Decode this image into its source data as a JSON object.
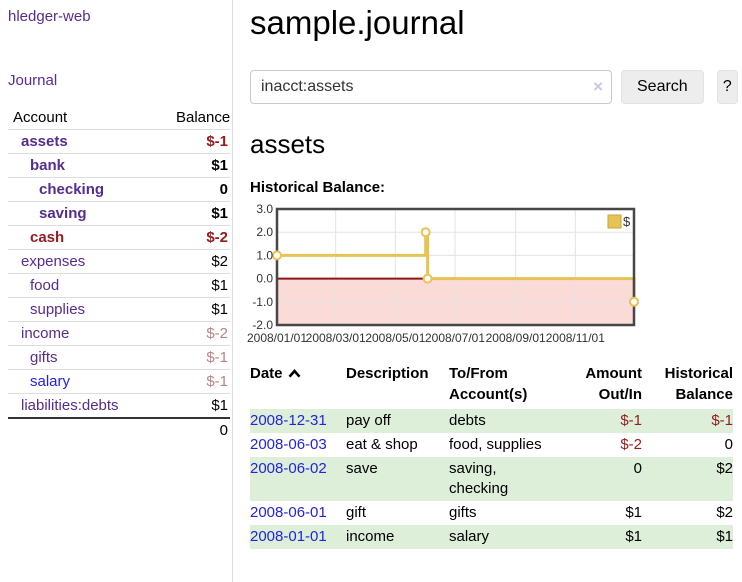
{
  "app": {
    "title": "hledger-web",
    "nav_journal": "Journal"
  },
  "sidebar_accounts": {
    "headers": {
      "account": "Account",
      "balance": "Balance"
    },
    "rows": [
      {
        "name": "assets",
        "balance": "$-1",
        "depth": 1,
        "bold": true,
        "balance_style": "neg-strong",
        "name_style": "purple"
      },
      {
        "name": "bank",
        "balance": "$1",
        "depth": 2,
        "bold": true,
        "balance_style": "",
        "name_style": "purple"
      },
      {
        "name": "checking",
        "balance": "0",
        "depth": 3,
        "bold": true,
        "balance_style": "",
        "name_style": "purple"
      },
      {
        "name": "saving",
        "balance": "$1",
        "depth": 3,
        "bold": true,
        "balance_style": "",
        "name_style": "purple"
      },
      {
        "name": "cash",
        "balance": "$-2",
        "depth": 2,
        "bold": true,
        "balance_style": "neg-strong",
        "name_style": "maroon"
      },
      {
        "name": "expenses",
        "balance": "$2",
        "depth": 1,
        "bold": false,
        "balance_style": "",
        "name_style": "purple"
      },
      {
        "name": "food",
        "balance": "$1",
        "depth": 2,
        "bold": false,
        "balance_style": "",
        "name_style": "purple"
      },
      {
        "name": "supplies",
        "balance": "$1",
        "depth": 2,
        "bold": false,
        "balance_style": "",
        "name_style": "purple"
      },
      {
        "name": "income",
        "balance": "$-2",
        "depth": 1,
        "bold": false,
        "balance_style": "neg-soft",
        "name_style": "purple"
      },
      {
        "name": "gifts",
        "balance": "$-1",
        "depth": 2,
        "bold": false,
        "balance_style": "neg-soft",
        "name_style": "purple"
      },
      {
        "name": "salary",
        "balance": "$-1",
        "depth": 2,
        "bold": false,
        "balance_style": "neg-soft",
        "name_style": "blue"
      },
      {
        "name": "liabilities:debts",
        "balance": "$1",
        "depth": 1,
        "bold": false,
        "balance_style": "",
        "name_style": "purple"
      }
    ],
    "total": "0"
  },
  "page": {
    "title": "sample.journal",
    "account_heading": "assets",
    "chart_label": "Historical Balance:"
  },
  "search": {
    "value": "inacct:assets",
    "clear_icon": "×",
    "search_button": "Search",
    "help_button": "?"
  },
  "chart_data": {
    "type": "line",
    "step": true,
    "title": "Historical Balance",
    "xlim_days": [
      0,
      365
    ],
    "ylim": [
      -2,
      3
    ],
    "grid": true,
    "y_ticks": [
      {
        "label": "3.0",
        "value": 3
      },
      {
        "label": "2.0",
        "value": 2
      },
      {
        "label": "1.0",
        "value": 1
      },
      {
        "label": "0.0",
        "value": 0
      },
      {
        "label": "-1.0",
        "value": -1
      },
      {
        "label": "-2.0",
        "value": -2
      }
    ],
    "x_ticks": [
      {
        "label": "2008/01/01",
        "day": 0
      },
      {
        "label": "2008/03/01",
        "day": 60
      },
      {
        "label": "2008/05/01",
        "day": 121
      },
      {
        "label": "2008/07/01",
        "day": 182
      },
      {
        "label": "2008/09/01",
        "day": 244
      },
      {
        "label": "2008/11/01",
        "day": 305
      }
    ],
    "series": [
      {
        "name": "$",
        "color": "#e7c353",
        "points": [
          {
            "date": "2008-01-01",
            "day": 0,
            "value": 1
          },
          {
            "date": "2008-06-01",
            "day": 152,
            "value": 2
          },
          {
            "date": "2008-06-03",
            "day": 154,
            "value": 0
          },
          {
            "date": "2008-12-31",
            "day": 365,
            "value": -1
          }
        ]
      }
    ],
    "legend": {
      "label": "$",
      "position": "top-right"
    },
    "negative_fill": "#fbdbd8",
    "zero_line_color": "#8e1515",
    "grid_color": "#e3e3e3",
    "border_color": "#474747"
  },
  "register": {
    "headers": {
      "date": "Date",
      "description": "Description",
      "accounts": "To/From Account(s)",
      "amount": "Amount Out/In",
      "balance": "Historical Balance"
    },
    "rows": [
      {
        "date": "2008-12-31",
        "description": "pay off",
        "accounts": "debts",
        "amount": "$-1",
        "balance": "$-1",
        "amount_neg": true,
        "balance_neg": true,
        "shaded": true
      },
      {
        "date": "2008-06-03",
        "description": "eat & shop",
        "accounts": "food, supplies",
        "amount": "$-2",
        "balance": "0",
        "amount_neg": true,
        "balance_neg": false,
        "shaded": false
      },
      {
        "date": "2008-06-02",
        "description": "save",
        "accounts": "saving, checking",
        "amount": "0",
        "balance": "$2",
        "amount_neg": false,
        "balance_neg": false,
        "shaded": true
      },
      {
        "date": "2008-06-01",
        "description": "gift",
        "accounts": "gifts",
        "amount": "$1",
        "balance": "$2",
        "amount_neg": false,
        "balance_neg": false,
        "shaded": false
      },
      {
        "date": "2008-01-01",
        "description": "income",
        "accounts": "salary",
        "amount": "$1",
        "balance": "$1",
        "amount_neg": false,
        "balance_neg": false,
        "shaded": true
      }
    ]
  },
  "colors": {
    "link_purple": "#552d90",
    "link_blue": "#2323dd",
    "neg_strong": "#931c1c",
    "neg_soft": "#bc8383",
    "row_green": "#ddeed9",
    "button_gray": "#ededed",
    "chart_line": "#e7c353",
    "chart_negative_fill": "#fbdbd8",
    "chart_zero_line": "#8e1515"
  }
}
